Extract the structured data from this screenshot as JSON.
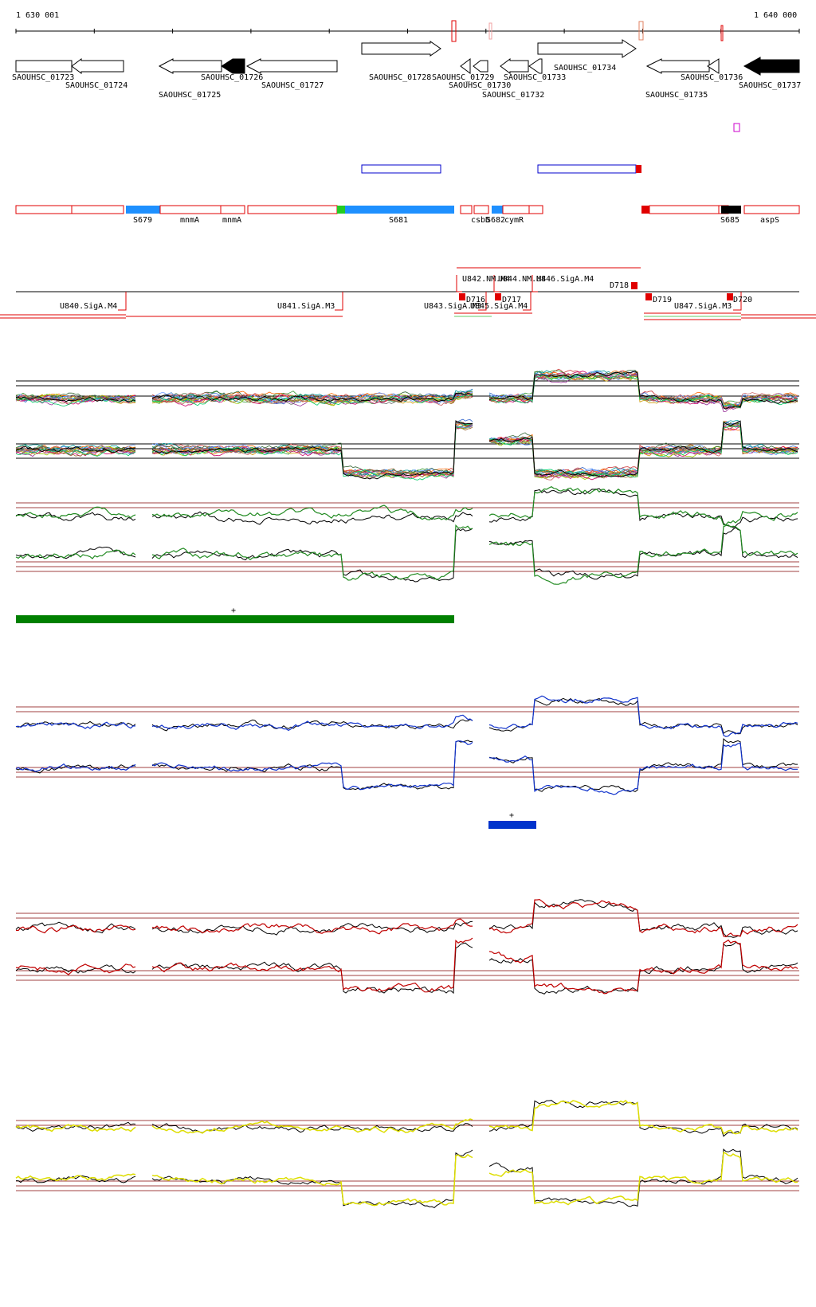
{
  "coords": {
    "start": "1 630 001",
    "end": "1 640 000"
  },
  "colors": {
    "gene_fill_plus": "#ffffff",
    "gene_fill_filled": "#000000",
    "seg_red": "#e00000",
    "seg_blue": "#1e90ff",
    "seg_green": "#22cc22",
    "trace_green": "#228b22",
    "trace_blue": "#1133cc",
    "trace_red": "#c00000",
    "trace_yellow": "#dddd00",
    "trace_black": "#000000",
    "ref_line": "#a04040",
    "bar_green": "#008000",
    "bar_blue": "#0033cc",
    "magenta": "#cc00cc"
  },
  "genes": [
    {
      "id": "SAOUHSC_01723",
      "label": "SAOUHSC_01723",
      "strand": "+",
      "filled": false
    },
    {
      "id": "SAOUHSC_01724",
      "label": "SAOUHSC_01724",
      "strand": "-",
      "filled": false
    },
    {
      "id": "SAOUHSC_01725",
      "label": "SAOUHSC_01725",
      "strand": "-",
      "filled": false
    },
    {
      "id": "SAOUHSC_01726",
      "label": "SAOUHSC_01726",
      "strand": "-",
      "filled": true
    },
    {
      "id": "SAOUHSC_01727",
      "label": "SAOUHSC_01727",
      "strand": "-",
      "filled": false
    },
    {
      "id": "SAOUHSC_01728",
      "label": "SAOUHSC_01728",
      "strand": "+",
      "filled": false
    },
    {
      "id": "SAOUHSC_01729",
      "label": "SAOUHSC_01729",
      "strand": "-",
      "filled": false
    },
    {
      "id": "SAOUHSC_01730",
      "label": "SAOUHSC_01730",
      "strand": "-",
      "filled": false
    },
    {
      "id": "SAOUHSC_01732",
      "label": "SAOUHSC_01732",
      "strand": "-",
      "filled": false
    },
    {
      "id": "SAOUHSC_01733",
      "label": "SAOUHSC_01733",
      "strand": "-",
      "filled": false
    },
    {
      "id": "SAOUHSC_01734",
      "label": "SAOUHSC_01734",
      "strand": "+",
      "filled": false
    },
    {
      "id": "SAOUHSC_01735",
      "label": "SAOUHSC_01735",
      "strand": "-",
      "filled": false
    },
    {
      "id": "SAOUHSC_01736",
      "label": "SAOUHSC_01736",
      "strand": "-",
      "filled": false
    },
    {
      "id": "SAOUHSC_01737",
      "label": "SAOUHSC_01737",
      "strand": "-",
      "filled": true
    }
  ],
  "segments": [
    "S679",
    "mnmA",
    "mnmA",
    "S681",
    "csbD",
    "S682",
    "cymR",
    "S685",
    "aspS"
  ],
  "features": {
    "upstream": [
      "U840.SigA.M4",
      "U841.SigA.M3",
      "U842.NM.M4",
      "U843.SigA.M3",
      "U844.NM.M4",
      "U845.SigA.M4",
      "U846.SigA.M4",
      "U847.SigA.M3"
    ],
    "downstream": [
      "D716",
      "D717",
      "D718",
      "D719",
      "D720"
    ]
  },
  "markers": {
    "plus": "+"
  }
}
